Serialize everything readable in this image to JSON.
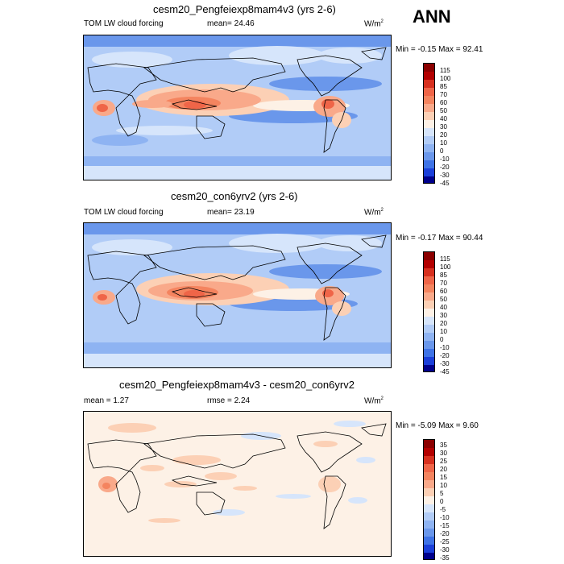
{
  "ann_label": "ANN",
  "panels": [
    {
      "title": "cesm20_Pengfeiexp8mam4v3 (yrs 2-6)",
      "left_label": "TOM LW cloud forcing",
      "center_label": "mean=  24.46",
      "units": "W/m",
      "units_sup": "2",
      "minmax": "Min =  -0.15 Max =  92.41",
      "colorbar_labels": [
        "115",
        "100",
        "85",
        "70",
        "60",
        "50",
        "40",
        "30",
        "20",
        "10",
        "0",
        "-10",
        "-20",
        "-30",
        "-45"
      ]
    },
    {
      "title": "cesm20_con6yrv2 (yrs 2-6)",
      "left_label": "TOM LW cloud forcing",
      "center_label": "mean=  23.19",
      "units": "W/m",
      "units_sup": "2",
      "minmax": "Min =  -0.17 Max =  90.44",
      "colorbar_labels": [
        "115",
        "100",
        "85",
        "70",
        "60",
        "50",
        "40",
        "30",
        "20",
        "10",
        "0",
        "-10",
        "-20",
        "-30",
        "-45"
      ]
    },
    {
      "title": "cesm20_Pengfeiexp8mam4v3 - cesm20_con6yrv2",
      "left_label": "mean =    1.27",
      "center_label": "rmse =    2.24",
      "units": "W/m",
      "units_sup": "2",
      "minmax": "Min =  -5.09 Max =   9.60",
      "colorbar_labels": [
        "35",
        "30",
        "25",
        "20",
        "15",
        "10",
        "5",
        "0",
        "-5",
        "-10",
        "-15",
        "-20",
        "-25",
        "-30",
        "-35"
      ]
    }
  ],
  "colors": {
    "abs_scale": [
      "#8b0000",
      "#b30000",
      "#d7301f",
      "#ef6548",
      "#f4845f",
      "#f9a98a",
      "#fcd0b5",
      "#fdf1e6",
      "#d6e5fb",
      "#b1ccf7",
      "#8eb3f2",
      "#6a97eb",
      "#3f73e6",
      "#1b3fd9",
      "#00008b"
    ],
    "diff_scale": [
      "#8b0000",
      "#b30000",
      "#d7301f",
      "#ef6548",
      "#f4845f",
      "#f9a98a",
      "#fcd0b5",
      "#fdf1e6",
      "#d6e5fb",
      "#b1ccf7",
      "#8eb3f2",
      "#6a97eb",
      "#3f73e6",
      "#1b3fd9",
      "#00008b"
    ]
  }
}
